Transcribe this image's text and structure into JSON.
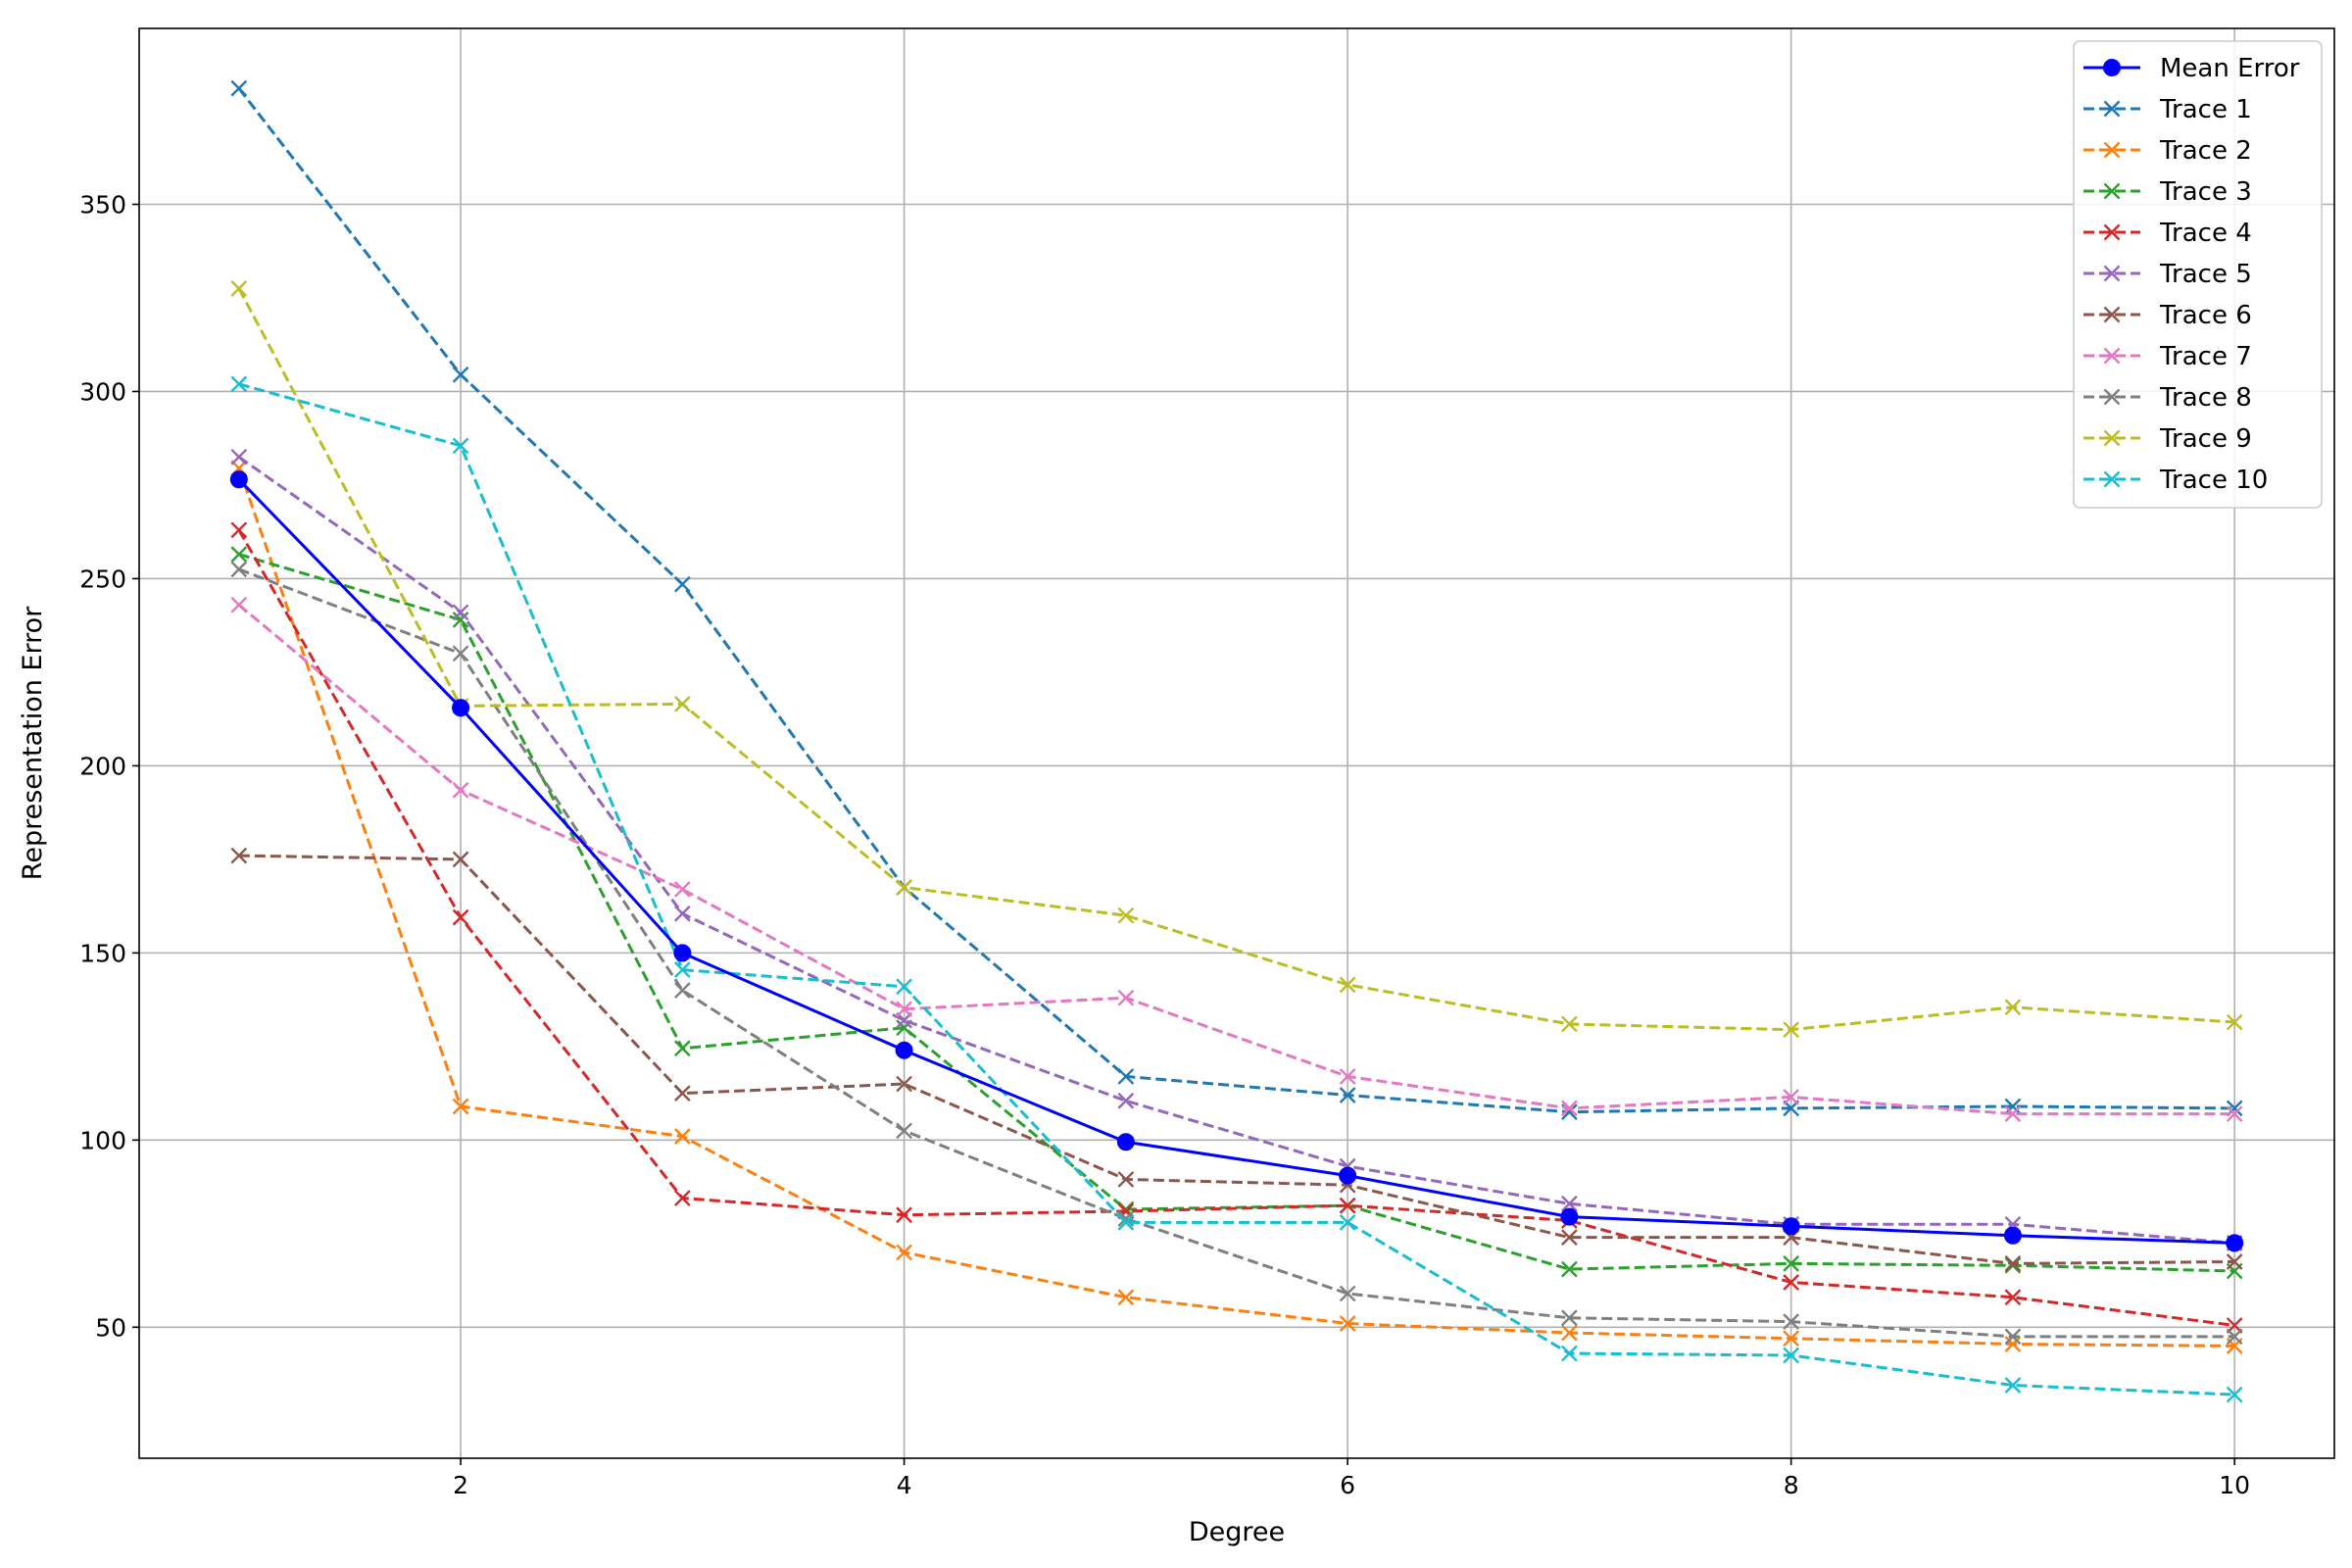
{
  "chart_data": {
    "type": "line",
    "title": "",
    "xlabel": "Degree",
    "ylabel": "Representation Error",
    "xlim": [
      0.55,
      10.45
    ],
    "ylim": [
      15,
      397
    ],
    "xticks": [
      2,
      4,
      6,
      8,
      10
    ],
    "yticks": [
      50,
      100,
      150,
      200,
      250,
      300,
      350
    ],
    "grid": true,
    "legend_position": "top-right",
    "x": [
      1,
      2,
      3,
      4,
      5,
      6,
      7,
      8,
      9,
      10
    ],
    "series": [
      {
        "name": "Mean Error",
        "color": "#0000ff",
        "style": "solid",
        "marker": "circle",
        "values": [
          276.5,
          215.5,
          150,
          124,
          99.5,
          90.5,
          79.5,
          77,
          74.5,
          72.5
        ]
      },
      {
        "name": "Trace 1",
        "color": "#1f77b4",
        "style": "dashed",
        "marker": "x",
        "values": [
          381,
          304.5,
          248.5,
          167.5,
          117,
          112,
          107.5,
          108.5,
          109,
          108.5
        ]
      },
      {
        "name": "Trace 2",
        "color": "#ff7f0e",
        "style": "dashed",
        "marker": "x",
        "values": [
          279.5,
          109,
          101,
          70,
          58,
          51,
          48.5,
          47,
          45.5,
          45
        ]
      },
      {
        "name": "Trace 3",
        "color": "#2ca02c",
        "style": "dashed",
        "marker": "x",
        "values": [
          256.5,
          239,
          124.5,
          130,
          81.5,
          82.5,
          65.5,
          67,
          66.5,
          65
        ]
      },
      {
        "name": "Trace 4",
        "color": "#d62728",
        "style": "dashed",
        "marker": "x",
        "values": [
          263,
          159.5,
          84.5,
          80,
          81,
          82.5,
          78.5,
          62,
          58,
          50.5
        ]
      },
      {
        "name": "Trace 5",
        "color": "#9467bd",
        "style": "dashed",
        "marker": "x",
        "values": [
          282.5,
          241,
          160.5,
          132,
          110.5,
          93,
          83,
          77.5,
          77.5,
          72.5
        ]
      },
      {
        "name": "Trace 6",
        "color": "#8c564b",
        "style": "dashed",
        "marker": "x",
        "values": [
          176,
          175,
          112.5,
          115,
          89.5,
          88,
          74,
          74,
          67,
          67.5
        ]
      },
      {
        "name": "Trace 7",
        "color": "#e377c2",
        "style": "dashed",
        "marker": "x",
        "values": [
          243,
          193.5,
          167,
          135,
          138,
          117,
          108.5,
          111.5,
          107,
          107
        ]
      },
      {
        "name": "Trace 8",
        "color": "#7f7f7f",
        "style": "dashed",
        "marker": "x",
        "values": [
          252.5,
          230,
          140,
          102.5,
          79,
          59,
          52.5,
          51.5,
          47.5,
          47.5
        ]
      },
      {
        "name": "Trace 9",
        "color": "#bcbd22",
        "style": "dashed",
        "marker": "x",
        "values": [
          327.5,
          216,
          216.5,
          167.5,
          160,
          141.5,
          131,
          129.5,
          135.5,
          131.5
        ]
      },
      {
        "name": "Trace 10",
        "color": "#17becf",
        "style": "dashed",
        "marker": "x",
        "values": [
          302,
          285.5,
          145.5,
          141,
          78,
          78,
          43,
          42.5,
          34.5,
          32
        ]
      }
    ]
  }
}
